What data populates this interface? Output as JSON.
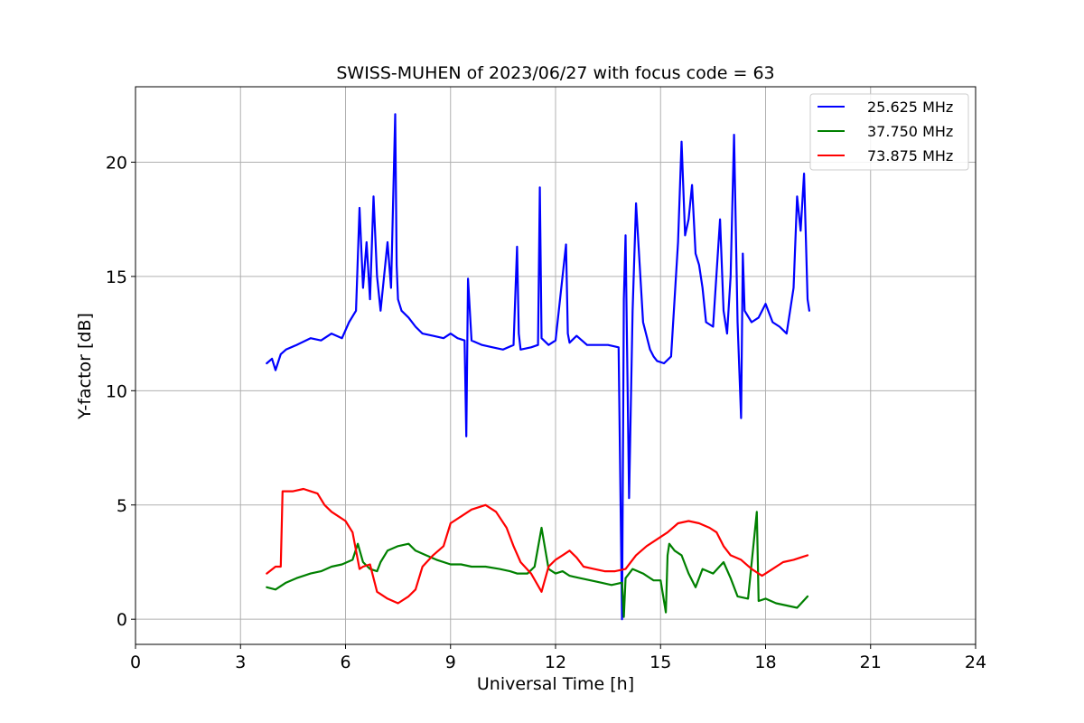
{
  "chart_data": {
    "type": "line",
    "title": "SWISS-MUHEN of 2023/06/27 with focus code = 63",
    "xlabel": "Universal Time [h]",
    "ylabel": "Y-factor [dB]",
    "xlim": [
      0,
      24
    ],
    "ylim": [
      -1.1,
      23.3
    ],
    "xticks": [
      0,
      3,
      6,
      9,
      12,
      15,
      18,
      21,
      24
    ],
    "xtick_labels": [
      "0",
      "3",
      "6",
      "9",
      "12",
      "15",
      "18",
      "21",
      "24"
    ],
    "yticks": [
      0,
      5,
      10,
      15,
      20
    ],
    "ytick_labels": [
      "0",
      "5",
      "10",
      "15",
      "20"
    ],
    "grid": true,
    "legend_position": "top-right",
    "series": [
      {
        "name": "25.625 MHz",
        "color": "#0000ff",
        "x": [
          3.75,
          3.9,
          4.0,
          4.15,
          4.3,
          4.6,
          5.0,
          5.3,
          5.6,
          5.9,
          6.1,
          6.3,
          6.4,
          6.5,
          6.6,
          6.7,
          6.8,
          6.9,
          7.0,
          7.2,
          7.3,
          7.42,
          7.46,
          7.5,
          7.6,
          7.8,
          8.0,
          8.2,
          8.5,
          8.8,
          9.0,
          9.2,
          9.4,
          9.45,
          9.5,
          9.6,
          9.9,
          10.2,
          10.5,
          10.8,
          10.9,
          10.95,
          11.0,
          11.3,
          11.5,
          11.55,
          11.6,
          11.8,
          12.0,
          12.3,
          12.35,
          12.4,
          12.6,
          12.9,
          13.2,
          13.5,
          13.8,
          13.9,
          13.95,
          14.0,
          14.1,
          14.2,
          14.3,
          14.5,
          14.7,
          14.8,
          14.9,
          15.1,
          15.3,
          15.5,
          15.6,
          15.7,
          15.8,
          15.9,
          16.0,
          16.1,
          16.2,
          16.3,
          16.5,
          16.7,
          16.8,
          16.9,
          17.0,
          17.1,
          17.2,
          17.3,
          17.35,
          17.4,
          17.6,
          17.8,
          18.0,
          18.2,
          18.4,
          18.6,
          18.8,
          18.9,
          19.0,
          19.1,
          19.2,
          19.25
        ],
        "y": [
          11.2,
          11.4,
          10.9,
          11.6,
          11.8,
          12.0,
          12.3,
          12.2,
          12.5,
          12.3,
          13.0,
          13.5,
          18.0,
          14.5,
          16.5,
          14.0,
          18.5,
          15.0,
          13.5,
          16.5,
          14.5,
          22.1,
          15.5,
          14.0,
          13.5,
          13.2,
          12.8,
          12.5,
          12.4,
          12.3,
          12.5,
          12.3,
          12.2,
          8.0,
          14.9,
          12.2,
          12.0,
          11.9,
          11.8,
          12.0,
          16.3,
          12.5,
          11.8,
          11.9,
          12.0,
          18.9,
          12.3,
          12.0,
          12.2,
          16.4,
          12.5,
          12.1,
          12.4,
          12.0,
          12.0,
          12.0,
          11.9,
          0.0,
          14.0,
          16.8,
          5.3,
          13.5,
          18.2,
          13.0,
          11.8,
          11.5,
          11.3,
          11.2,
          11.5,
          16.5,
          20.9,
          16.8,
          17.5,
          19.0,
          16.0,
          15.5,
          14.5,
          13.0,
          12.8,
          17.5,
          13.5,
          12.5,
          15.0,
          21.2,
          13.0,
          8.8,
          16.0,
          13.5,
          13.0,
          13.2,
          13.8,
          13.0,
          12.8,
          12.5,
          14.5,
          18.5,
          17.0,
          19.5,
          14.0,
          13.5
        ]
      },
      {
        "name": "37.750 MHz",
        "color": "#008000",
        "x": [
          3.75,
          4.0,
          4.3,
          4.6,
          5.0,
          5.3,
          5.6,
          5.9,
          6.2,
          6.35,
          6.5,
          6.7,
          6.9,
          7.0,
          7.2,
          7.5,
          7.8,
          8.0,
          8.3,
          8.6,
          9.0,
          9.3,
          9.6,
          10.0,
          10.4,
          10.7,
          10.9,
          11.2,
          11.4,
          11.6,
          11.8,
          12.0,
          12.2,
          12.4,
          12.7,
          13.0,
          13.3,
          13.6,
          13.9,
          13.95,
          14.0,
          14.2,
          14.5,
          14.8,
          15.0,
          15.15,
          15.2,
          15.25,
          15.4,
          15.6,
          15.8,
          16.0,
          16.2,
          16.5,
          16.8,
          17.0,
          17.2,
          17.5,
          17.75,
          17.8,
          18.0,
          18.3,
          18.6,
          18.9,
          19.2
        ],
        "y": [
          1.4,
          1.3,
          1.6,
          1.8,
          2.0,
          2.1,
          2.3,
          2.4,
          2.6,
          3.3,
          2.5,
          2.2,
          2.1,
          2.5,
          3.0,
          3.2,
          3.3,
          3.0,
          2.8,
          2.6,
          2.4,
          2.4,
          2.3,
          2.3,
          2.2,
          2.1,
          2.0,
          2.0,
          2.3,
          4.0,
          2.2,
          2.0,
          2.1,
          1.9,
          1.8,
          1.7,
          1.6,
          1.5,
          1.6,
          0.1,
          1.8,
          2.2,
          2.0,
          1.7,
          1.7,
          0.3,
          2.8,
          3.3,
          3.0,
          2.8,
          2.0,
          1.4,
          2.2,
          2.0,
          2.5,
          1.8,
          1.0,
          0.9,
          4.7,
          0.8,
          0.9,
          0.7,
          0.6,
          0.5,
          1.0
        ]
      },
      {
        "name": "73.875 MHz",
        "color": "#ff0000",
        "x": [
          3.75,
          4.0,
          4.15,
          4.2,
          4.5,
          4.8,
          5.0,
          5.2,
          5.4,
          5.6,
          5.8,
          6.0,
          6.2,
          6.4,
          6.5,
          6.7,
          6.9,
          7.2,
          7.5,
          7.8,
          8.0,
          8.2,
          8.5,
          8.8,
          9.0,
          9.3,
          9.6,
          10.0,
          10.3,
          10.6,
          10.8,
          11.0,
          11.3,
          11.6,
          11.8,
          12.0,
          12.2,
          12.4,
          12.6,
          12.8,
          13.1,
          13.4,
          13.7,
          14.0,
          14.3,
          14.6,
          14.9,
          15.2,
          15.5,
          15.8,
          16.1,
          16.4,
          16.6,
          16.8,
          17.0,
          17.3,
          17.6,
          17.9,
          18.2,
          18.5,
          18.8,
          19.2
        ],
        "y": [
          2.0,
          2.3,
          2.3,
          5.6,
          5.6,
          5.7,
          5.6,
          5.5,
          5.0,
          4.7,
          4.5,
          4.3,
          3.8,
          2.2,
          2.3,
          2.4,
          1.2,
          0.9,
          0.7,
          1.0,
          1.3,
          2.3,
          2.8,
          3.2,
          4.2,
          4.5,
          4.8,
          5.0,
          4.7,
          4.0,
          3.2,
          2.5,
          2.0,
          1.2,
          2.3,
          2.6,
          2.8,
          3.0,
          2.7,
          2.3,
          2.2,
          2.1,
          2.1,
          2.2,
          2.8,
          3.2,
          3.5,
          3.8,
          4.2,
          4.3,
          4.2,
          4.0,
          3.8,
          3.2,
          2.8,
          2.6,
          2.2,
          1.9,
          2.2,
          2.5,
          2.6,
          2.8
        ]
      }
    ]
  }
}
